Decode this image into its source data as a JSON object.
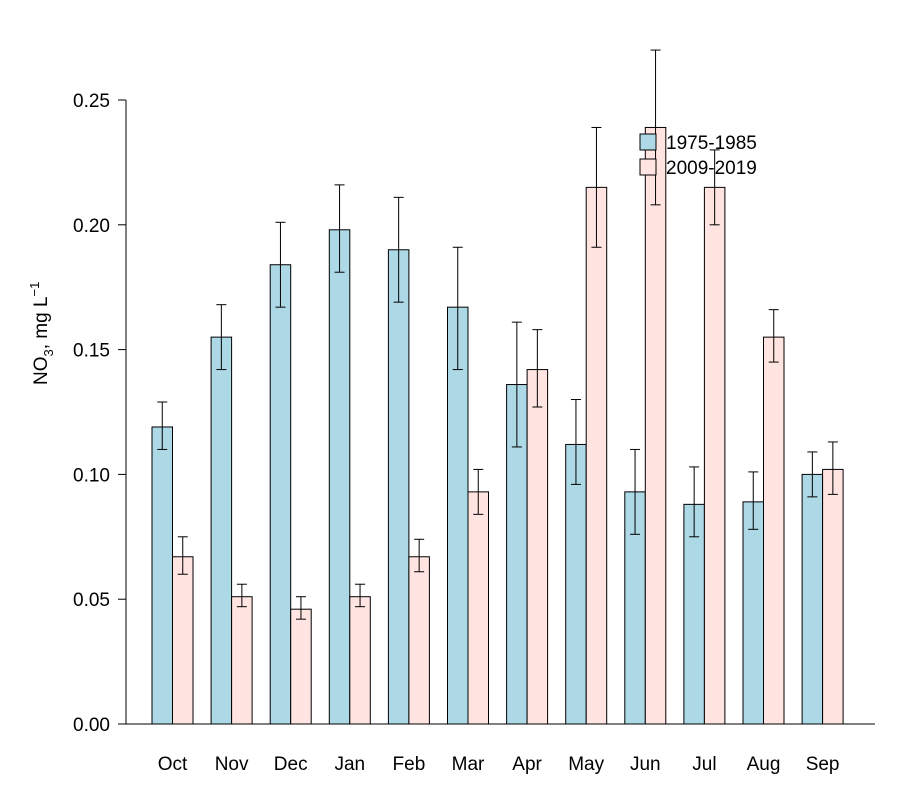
{
  "chart_data": {
    "type": "bar",
    "title": "",
    "xlabel": "",
    "ylabel": {
      "main": "NO",
      "sub": "3",
      "unit": ", mg L",
      "sup": "−1"
    },
    "categories": [
      "Oct",
      "Nov",
      "Dec",
      "Jan",
      "Feb",
      "Mar",
      "Apr",
      "May",
      "Jun",
      "Jul",
      "Aug",
      "Sep"
    ],
    "series": [
      {
        "name": "1975-1985",
        "color": "#add8e6",
        "values": [
          0.119,
          0.155,
          0.184,
          0.198,
          0.19,
          0.167,
          0.136,
          0.112,
          0.093,
          0.088,
          0.089,
          0.1
        ],
        "err_low": [
          0.11,
          0.142,
          0.167,
          0.181,
          0.169,
          0.142,
          0.111,
          0.096,
          0.076,
          0.075,
          0.078,
          0.091
        ],
        "err_high": [
          0.129,
          0.168,
          0.201,
          0.216,
          0.211,
          0.191,
          0.161,
          0.13,
          0.11,
          0.103,
          0.101,
          0.109
        ]
      },
      {
        "name": "2009-2019",
        "color": "#ffe4e1",
        "values": [
          0.067,
          0.051,
          0.046,
          0.051,
          0.067,
          0.093,
          0.142,
          0.215,
          0.239,
          0.215,
          0.155,
          0.102
        ],
        "err_low": [
          0.06,
          0.047,
          0.042,
          0.047,
          0.061,
          0.084,
          0.127,
          0.191,
          0.208,
          0.2,
          0.145,
          0.092
        ],
        "err_high": [
          0.075,
          0.056,
          0.051,
          0.056,
          0.074,
          0.102,
          0.158,
          0.239,
          0.27,
          0.23,
          0.166,
          0.113
        ]
      }
    ],
    "ylim": [
      0,
      0.25
    ],
    "yticks": [
      "0.00",
      "0.05",
      "0.10",
      "0.15",
      "0.20",
      "0.25"
    ],
    "grid": false,
    "legend": "top-right"
  }
}
